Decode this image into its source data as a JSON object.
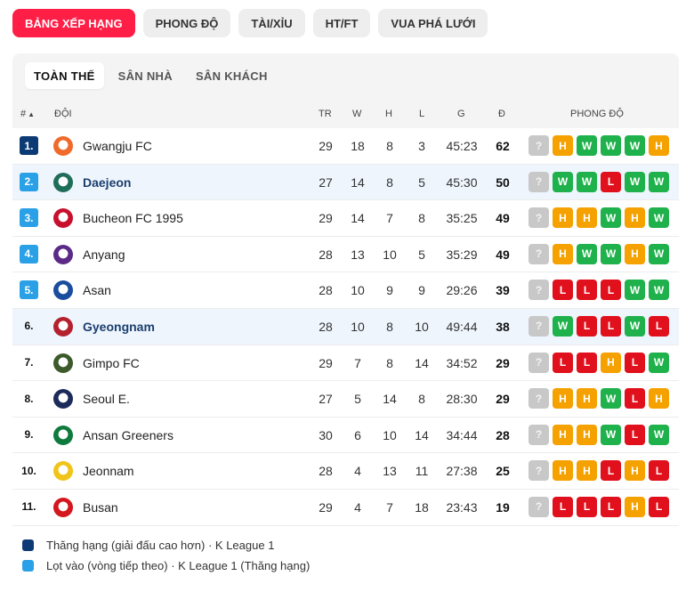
{
  "top_tabs": [
    "BẢNG XẾP HẠNG",
    "PHONG ĐỘ",
    "TÀI/XỈU",
    "HT/FT",
    "VUA PHÁ LƯỚI"
  ],
  "sub_tabs": [
    "TOÀN THỂ",
    "SÂN NHÀ",
    "SÂN KHÁCH"
  ],
  "header": {
    "rank": "#",
    "sort_arrow": "▲",
    "team": "ĐỘI",
    "played": "TR",
    "won": "W",
    "draw": "H",
    "lost": "L",
    "goals": "G",
    "points": "Đ",
    "form": "PHONG ĐỘ"
  },
  "colors": {
    "promotion": "#0b3a75",
    "playoff": "#2aa0e6",
    "win": "#1fb14b",
    "loss": "#e0101c",
    "draw": "#f5a100",
    "active_tab": "#ff1e46"
  },
  "rows": [
    {
      "rank": "1.",
      "team": "Gwangju FC",
      "played": "29",
      "won": "18",
      "draw": "8",
      "lost": "3",
      "goals": "45:23",
      "points": "62",
      "zone": "promo",
      "highlight": false,
      "logo_color": "#f06a2c",
      "form": [
        "?",
        "H",
        "W",
        "W",
        "W",
        "H"
      ]
    },
    {
      "rank": "2.",
      "team": "Daejeon",
      "played": "27",
      "won": "14",
      "draw": "8",
      "lost": "5",
      "goals": "45:30",
      "points": "50",
      "zone": "playoff",
      "highlight": true,
      "logo_color": "#1f6e5a",
      "form": [
        "?",
        "W",
        "W",
        "L",
        "W",
        "W"
      ]
    },
    {
      "rank": "3.",
      "team": "Bucheon FC 1995",
      "played": "29",
      "won": "14",
      "draw": "7",
      "lost": "8",
      "goals": "35:25",
      "points": "49",
      "zone": "playoff",
      "highlight": false,
      "logo_color": "#c8102e",
      "form": [
        "?",
        "H",
        "H",
        "W",
        "H",
        "W"
      ]
    },
    {
      "rank": "4.",
      "team": "Anyang",
      "played": "28",
      "won": "13",
      "draw": "10",
      "lost": "5",
      "goals": "35:29",
      "points": "49",
      "zone": "playoff",
      "highlight": false,
      "logo_color": "#5b2a86",
      "form": [
        "?",
        "H",
        "W",
        "W",
        "H",
        "W"
      ]
    },
    {
      "rank": "5.",
      "team": "Asan",
      "played": "28",
      "won": "10",
      "draw": "9",
      "lost": "9",
      "goals": "29:26",
      "points": "39",
      "zone": "playoff",
      "highlight": false,
      "logo_color": "#1a4d9e",
      "form": [
        "?",
        "L",
        "L",
        "L",
        "W",
        "W"
      ]
    },
    {
      "rank": "6.",
      "team": "Gyeongnam",
      "played": "28",
      "won": "10",
      "draw": "8",
      "lost": "10",
      "goals": "49:44",
      "points": "38",
      "zone": "",
      "highlight": true,
      "logo_color": "#b5202e",
      "form": [
        "?",
        "W",
        "L",
        "L",
        "W",
        "L"
      ]
    },
    {
      "rank": "7.",
      "team": "Gimpo FC",
      "played": "29",
      "won": "7",
      "draw": "8",
      "lost": "14",
      "goals": "34:52",
      "points": "29",
      "zone": "",
      "highlight": false,
      "logo_color": "#3d5a2a",
      "form": [
        "?",
        "L",
        "L",
        "H",
        "L",
        "W"
      ]
    },
    {
      "rank": "8.",
      "team": "Seoul E.",
      "played": "27",
      "won": "5",
      "draw": "14",
      "lost": "8",
      "goals": "28:30",
      "points": "29",
      "zone": "",
      "highlight": false,
      "logo_color": "#1c2b5a",
      "form": [
        "?",
        "H",
        "H",
        "W",
        "L",
        "H"
      ]
    },
    {
      "rank": "9.",
      "team": "Ansan Greeners",
      "played": "30",
      "won": "6",
      "draw": "10",
      "lost": "14",
      "goals": "34:44",
      "points": "28",
      "zone": "",
      "highlight": false,
      "logo_color": "#0f7a3d",
      "form": [
        "?",
        "H",
        "H",
        "W",
        "L",
        "W"
      ]
    },
    {
      "rank": "10.",
      "team": "Jeonnam",
      "played": "28",
      "won": "4",
      "draw": "13",
      "lost": "11",
      "goals": "27:38",
      "points": "25",
      "zone": "",
      "highlight": false,
      "logo_color": "#f0c419",
      "form": [
        "?",
        "H",
        "H",
        "L",
        "H",
        "L"
      ]
    },
    {
      "rank": "11.",
      "team": "Busan",
      "played": "29",
      "won": "4",
      "draw": "7",
      "lost": "18",
      "goals": "23:43",
      "points": "19",
      "zone": "",
      "highlight": false,
      "logo_color": "#d4161f",
      "form": [
        "?",
        "L",
        "L",
        "L",
        "H",
        "L"
      ]
    }
  ],
  "legend": [
    {
      "label": "Thăng hạng (giải đấu cao hơn) · K League 1",
      "color": "#0b3a75"
    },
    {
      "label": "Lọt vào (vòng tiếp theo) · K League 1 (Thăng hạng)",
      "color": "#2aa0e6"
    }
  ]
}
